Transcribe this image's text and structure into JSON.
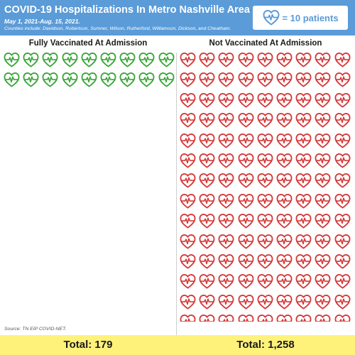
{
  "header": {
    "title": "COVID-19 Hospitalizations In Metro Nashville Area",
    "subtitle": "May 1, 2021-Aug. 15, 2021.",
    "counties": "Counties include: Davidson, Robertson, Sumner, Wilson, Rutherford, Williamson, Dickson, and Cheatham.",
    "legend": {
      "icon": "heart-pulse-icon",
      "text": "= 10 patients"
    }
  },
  "chart_data": {
    "type": "pictogram",
    "unit_label": "= 10 patients",
    "patients_per_icon": 10,
    "series": [
      {
        "name": "Fully Vaccinated At Admission",
        "value": 179,
        "total_label": "Total: 179",
        "color": "#3aa63a"
      },
      {
        "name": "Not Vaccinated At Admission",
        "value": 1258,
        "total_label": "Total: 1,258",
        "color": "#d43a3a"
      }
    ]
  },
  "footer": {
    "source": "Source: TN EIP COVID-NET."
  },
  "colors": {
    "header": "#5a9bd8",
    "footer": "#fff27a",
    "vaccinated": "#3aa63a",
    "unvaccinated": "#d43a3a"
  }
}
